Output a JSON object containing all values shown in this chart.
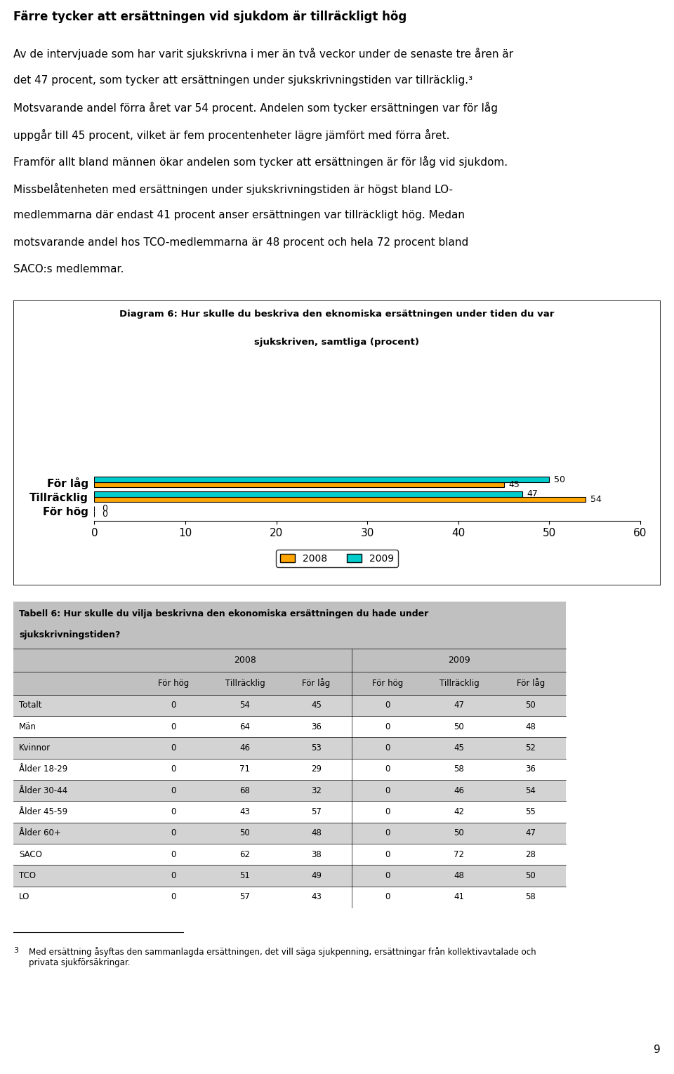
{
  "title_bold": "Färre tycker att ersättningen vid sjukdom är tillräckligt hög",
  "chart_title_line1": "Diagram 6: Hur skulle du beskriva den eknomiska ersättningen under tiden du var",
  "chart_title_line2": "sjukskriven, samtliga (procent)",
  "categories": [
    "För hög",
    "Tillräcklig",
    "För låg"
  ],
  "values_2008": [
    0,
    54,
    45
  ],
  "values_2009": [
    0,
    47,
    50
  ],
  "color_2008": "#FFA500",
  "color_2009": "#00CCCC",
  "xlim": [
    0,
    60
  ],
  "xticks": [
    0,
    10,
    20,
    30,
    40,
    50,
    60
  ],
  "legend_2008": "2008",
  "legend_2009": "2009",
  "table_title_line1": "Tabell 6: Hur skulle du vilja beskrivna den ekonomiska ersättningen du hade under",
  "table_title_line2": "sjukskrivningstiden?",
  "table_subheaders": [
    "För hög",
    "Tillräcklig",
    "För låg",
    "För hög",
    "Tillräcklig",
    "För låg"
  ],
  "table_rows": [
    [
      "Totalt",
      0,
      54,
      45,
      0,
      47,
      50
    ],
    [
      "Män",
      0,
      64,
      36,
      0,
      50,
      48
    ],
    [
      "Kvinnor",
      0,
      46,
      53,
      0,
      45,
      52
    ],
    [
      "Ålder 18-29",
      0,
      71,
      29,
      0,
      58,
      36
    ],
    [
      "Ålder 30-44",
      0,
      68,
      32,
      0,
      46,
      54
    ],
    [
      "Ålder 45-59",
      0,
      43,
      57,
      0,
      42,
      55
    ],
    [
      "Ålder 60+",
      0,
      50,
      48,
      0,
      50,
      47
    ],
    [
      "SACO",
      0,
      62,
      38,
      0,
      72,
      28
    ],
    [
      "TCO",
      0,
      51,
      49,
      0,
      48,
      50
    ],
    [
      "LO",
      0,
      57,
      43,
      0,
      41,
      58
    ]
  ],
  "footnote_num": "3",
  "footnote_text": "Med ersättning åsyftas den sammanlagda ersättningen, det vill säga sjukpenning, ersättningar från kollektivavtalade och\nprivata sjukförsäkringar.",
  "page_number": "9",
  "bg_color": "#FFFFFF",
  "table_border_color": "#009999",
  "table_header_bg": "#C0C0C0",
  "table_row_alt_bg": "#D3D3D3",
  "table_row_white_bg": "#FFFFFF"
}
